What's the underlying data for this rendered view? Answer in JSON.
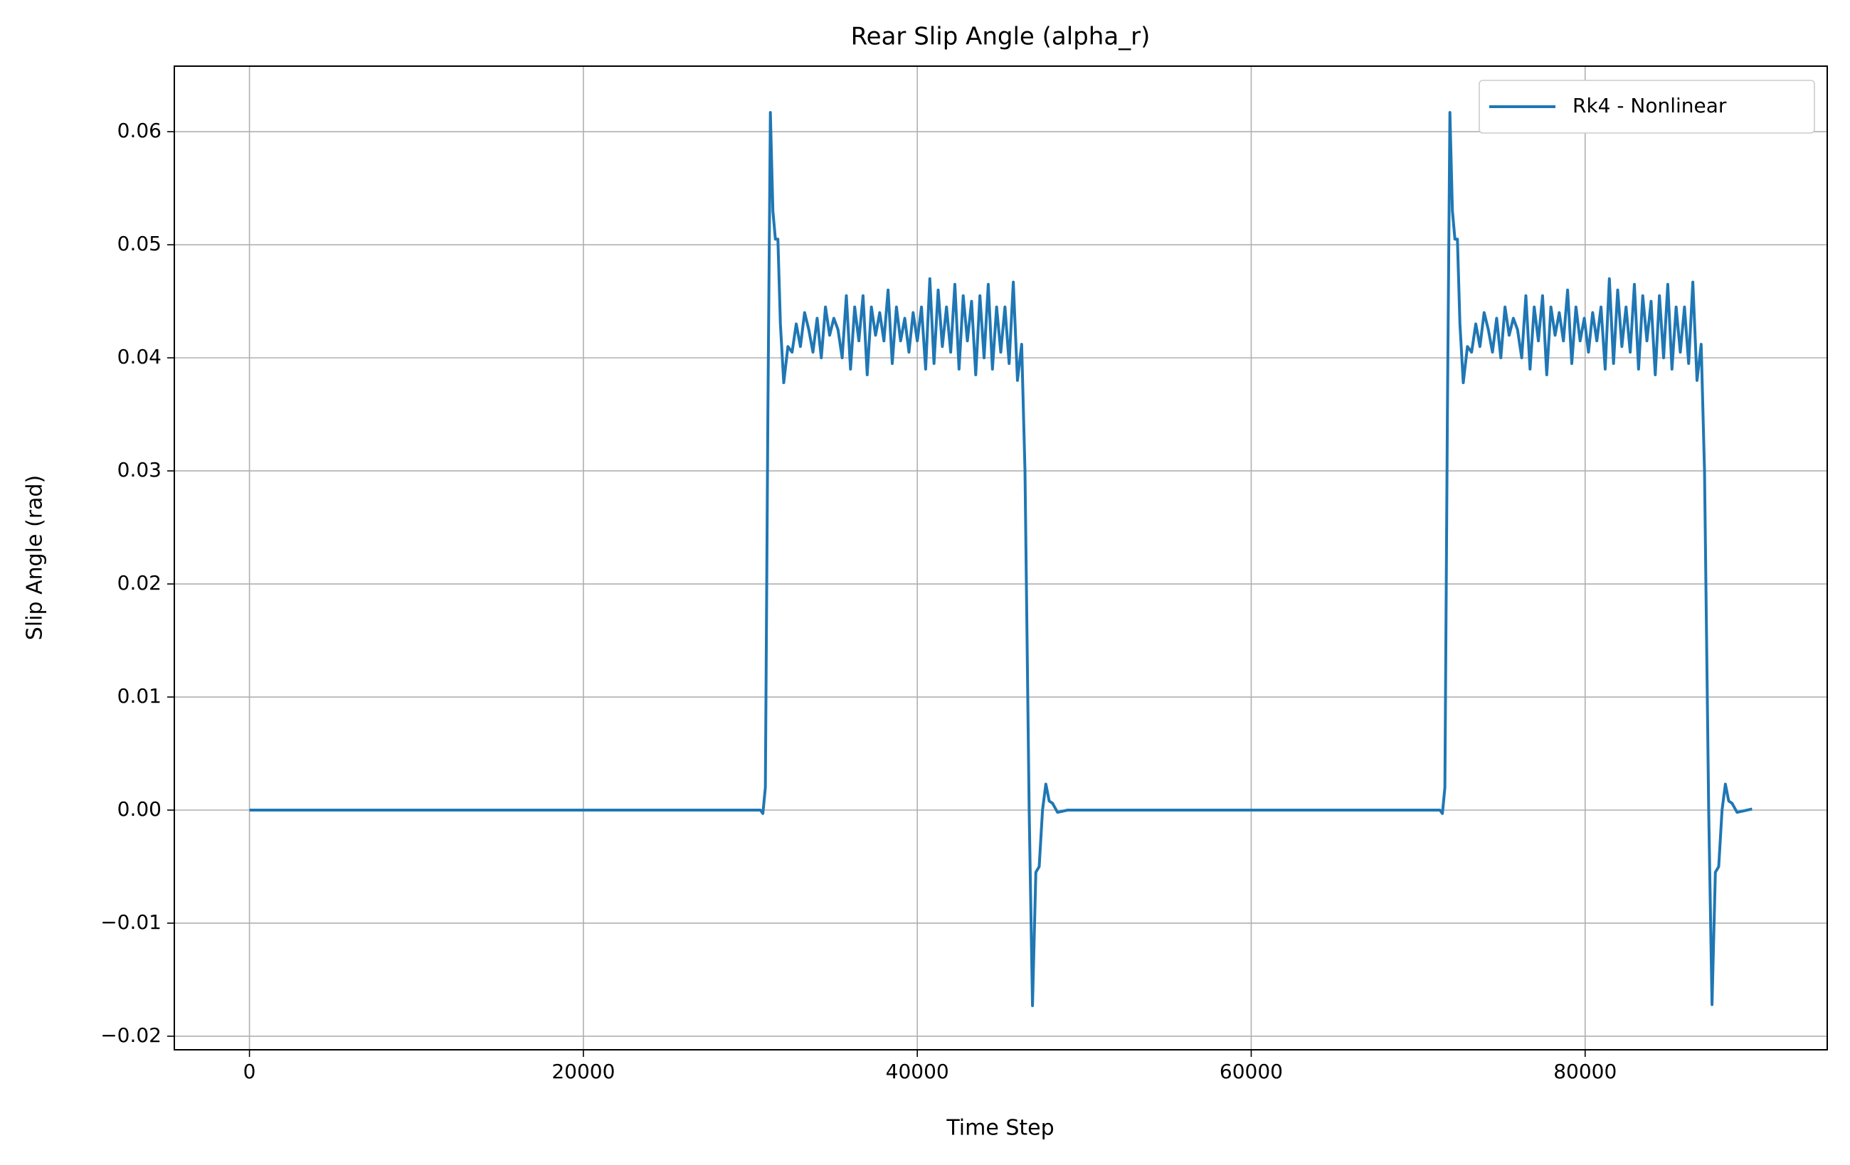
{
  "chart_data": {
    "type": "line",
    "title": "Rear Slip Angle (alpha_r)",
    "x_label": "Time Step",
    "y_label": "Slip Angle (rad)",
    "x": [
      0,
      30600,
      30750,
      30900,
      31050,
      31200,
      31350,
      31500,
      31650,
      31800,
      32000,
      32250,
      32500,
      32750,
      33000,
      33250,
      33500,
      33750,
      34000,
      34250,
      34500,
      34750,
      35000,
      35250,
      35500,
      35750,
      36000,
      36250,
      36500,
      36750,
      37000,
      37250,
      37500,
      37750,
      38000,
      38250,
      38500,
      38750,
      39000,
      39250,
      39500,
      39750,
      40000,
      40250,
      40500,
      40750,
      41000,
      41250,
      41500,
      41750,
      42000,
      42250,
      42500,
      42750,
      43000,
      43250,
      43500,
      43750,
      44000,
      44250,
      44500,
      44750,
      45000,
      45250,
      45500,
      45750,
      46000,
      46250,
      46450,
      46700,
      46900,
      47100,
      47300,
      47500,
      47700,
      47900,
      48100,
      48400,
      49000,
      71300,
      71450,
      71600,
      71750,
      71900,
      72050,
      72200,
      72350,
      72500,
      72700,
      72950,
      73200,
      73450,
      73700,
      73950,
      74200,
      74450,
      74700,
      74950,
      75200,
      75450,
      75700,
      75950,
      76200,
      76450,
      76700,
      76950,
      77200,
      77450,
      77700,
      77950,
      78200,
      78450,
      78700,
      78950,
      79200,
      79450,
      79700,
      79950,
      80200,
      80450,
      80700,
      80950,
      81200,
      81450,
      81700,
      81950,
      82200,
      82450,
      82700,
      82950,
      83200,
      83450,
      83700,
      83950,
      84200,
      84450,
      84700,
      84950,
      85200,
      85450,
      85700,
      85950,
      86200,
      86450,
      86700,
      86950,
      87150,
      87400,
      87600,
      87800,
      88000,
      88200,
      88400,
      88600,
      88800,
      89100,
      90000
    ],
    "series": [
      {
        "name": "Rk4 - Nonlinear",
        "color": "#1f77b4",
        "values": [
          0,
          0,
          -0.0003,
          0.002,
          0.035,
          0.0617,
          0.053,
          0.0505,
          0.0505,
          0.043,
          0.0378,
          0.041,
          0.0405,
          0.043,
          0.041,
          0.044,
          0.0425,
          0.0405,
          0.0435,
          0.04,
          0.0445,
          0.042,
          0.0435,
          0.0425,
          0.04,
          0.0455,
          0.039,
          0.0445,
          0.0415,
          0.0455,
          0.0385,
          0.0445,
          0.042,
          0.044,
          0.0415,
          0.046,
          0.0395,
          0.0445,
          0.0415,
          0.0435,
          0.0405,
          0.044,
          0.0415,
          0.0445,
          0.039,
          0.047,
          0.0395,
          0.046,
          0.041,
          0.0445,
          0.0405,
          0.0465,
          0.039,
          0.0455,
          0.0415,
          0.045,
          0.0385,
          0.0455,
          0.04,
          0.0465,
          0.039,
          0.0445,
          0.0405,
          0.0445,
          0.0395,
          0.0467,
          0.038,
          0.0412,
          0.03,
          0.0,
          -0.0173,
          -0.0055,
          -0.005,
          0.0,
          0.0023,
          0.0008,
          0.0006,
          -0.0002,
          0,
          0,
          -0.0003,
          0.002,
          0.035,
          0.0617,
          0.053,
          0.0505,
          0.0505,
          0.043,
          0.0378,
          0.041,
          0.0405,
          0.043,
          0.041,
          0.044,
          0.0425,
          0.0405,
          0.0435,
          0.04,
          0.0445,
          0.042,
          0.0435,
          0.0425,
          0.04,
          0.0455,
          0.039,
          0.0445,
          0.0415,
          0.0455,
          0.0385,
          0.0445,
          0.042,
          0.044,
          0.0415,
          0.046,
          0.0395,
          0.0445,
          0.0415,
          0.0435,
          0.0405,
          0.044,
          0.0415,
          0.0445,
          0.039,
          0.047,
          0.0395,
          0.046,
          0.041,
          0.0445,
          0.0405,
          0.0465,
          0.039,
          0.0455,
          0.0415,
          0.045,
          0.0385,
          0.0455,
          0.04,
          0.0465,
          0.039,
          0.0445,
          0.0405,
          0.0445,
          0.0395,
          0.0467,
          0.038,
          0.0412,
          0.03,
          0.0,
          -0.0172,
          -0.0055,
          -0.005,
          0.0,
          0.0023,
          0.0008,
          0.0006,
          -0.0002,
          0.0001
        ]
      }
    ],
    "xlim": [
      -4500,
      94500
    ],
    "ylim": [
      -0.0212,
      0.0658
    ],
    "xticks": [
      0,
      20000,
      40000,
      60000,
      80000
    ],
    "yticks": [
      {
        "value": -0.02,
        "label": "−0.02"
      },
      {
        "value": -0.01,
        "label": "−0.01"
      },
      {
        "value": 0,
        "label": "0.00"
      },
      0.01,
      0.02,
      0.03,
      0.04,
      0.05,
      0.06
    ],
    "grid": true,
    "legend": "upper right"
  }
}
